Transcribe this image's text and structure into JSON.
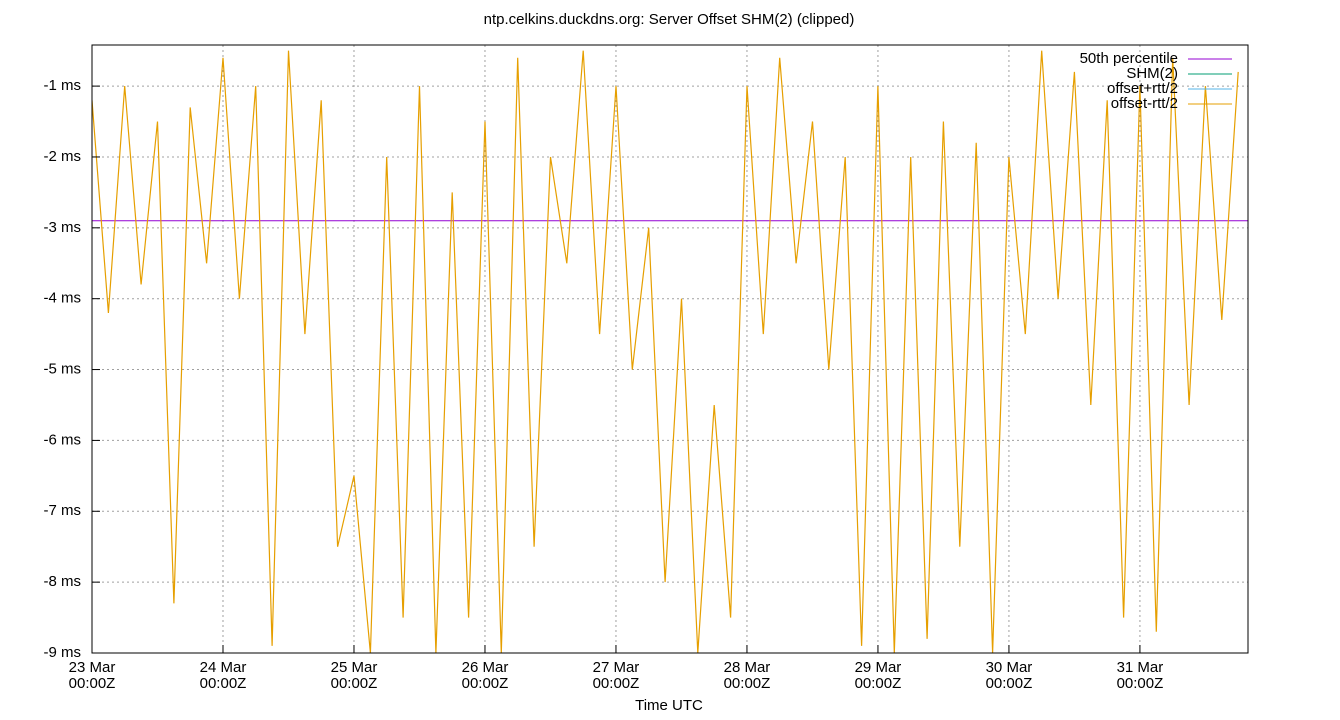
{
  "chart_data": {
    "type": "line",
    "title": "ntp.celkins.duckdns.org: Server Offset SHM(2) (clipped)",
    "x_label": "Time UTC",
    "x": [
      "23 Mar 00:00Z",
      "23 Mar 03:00Z",
      "23 Mar 06:00Z",
      "23 Mar 09:00Z",
      "23 Mar 12:00Z",
      "23 Mar 15:00Z",
      "23 Mar 18:00Z",
      "23 Mar 21:00Z",
      "24 Mar 00:00Z",
      "24 Mar 03:00Z",
      "24 Mar 06:00Z",
      "24 Mar 09:00Z",
      "24 Mar 12:00Z",
      "24 Mar 15:00Z",
      "24 Mar 18:00Z",
      "24 Mar 21:00Z",
      "25 Mar 00:00Z",
      "25 Mar 03:00Z",
      "25 Mar 06:00Z",
      "25 Mar 09:00Z",
      "25 Mar 12:00Z",
      "25 Mar 15:00Z",
      "25 Mar 18:00Z",
      "25 Mar 21:00Z",
      "26 Mar 00:00Z",
      "26 Mar 03:00Z",
      "26 Mar 06:00Z",
      "26 Mar 09:00Z",
      "26 Mar 12:00Z",
      "26 Mar 15:00Z",
      "26 Mar 18:00Z",
      "26 Mar 21:00Z",
      "27 Mar 00:00Z",
      "27 Mar 03:00Z",
      "27 Mar 06:00Z",
      "27 Mar 09:00Z",
      "27 Mar 12:00Z",
      "27 Mar 15:00Z",
      "27 Mar 18:00Z",
      "27 Mar 21:00Z",
      "28 Mar 00:00Z",
      "28 Mar 03:00Z",
      "28 Mar 06:00Z",
      "28 Mar 09:00Z",
      "28 Mar 12:00Z",
      "28 Mar 15:00Z",
      "28 Mar 18:00Z",
      "28 Mar 21:00Z",
      "29 Mar 00:00Z",
      "29 Mar 03:00Z",
      "29 Mar 06:00Z",
      "29 Mar 09:00Z",
      "29 Mar 12:00Z",
      "29 Mar 15:00Z",
      "29 Mar 18:00Z",
      "29 Mar 21:00Z",
      "30 Mar 00:00Z",
      "30 Mar 03:00Z",
      "30 Mar 06:00Z",
      "30 Mar 09:00Z",
      "30 Mar 12:00Z",
      "30 Mar 15:00Z",
      "30 Mar 18:00Z",
      "30 Mar 21:00Z",
      "31 Mar 00:00Z",
      "31 Mar 03:00Z",
      "31 Mar 06:00Z",
      "31 Mar 09:00Z",
      "31 Mar 12:00Z",
      "31 Mar 15:00Z",
      "31 Mar 18:00Z"
    ],
    "series": [
      {
        "name": "50th percentile",
        "color": "#9400d3",
        "value": -2.9
      },
      {
        "name": "SHM(2)",
        "color": "#009e73"
      },
      {
        "name": "offset+rtt/2",
        "color": "#56b4e9"
      },
      {
        "name": "offset-rtt/2",
        "color": "#e69f00",
        "values": [
          -1.2,
          -4.2,
          -1.0,
          -3.8,
          -1.5,
          -8.3,
          -1.3,
          -3.5,
          -0.6,
          -4.0,
          -1.0,
          -8.9,
          -0.5,
          -4.5,
          -1.2,
          -7.5,
          -6.5,
          -9.0,
          -2.0,
          -8.5,
          -1.0,
          -9.0,
          -2.5,
          -8.5,
          -1.5,
          -9.0,
          -0.6,
          -7.5,
          -2.0,
          -3.5,
          -0.5,
          -4.5,
          -1.0,
          -5.0,
          -3.0,
          -8.0,
          -4.0,
          -9.0,
          -5.5,
          -8.5,
          -1.0,
          -4.5,
          -0.6,
          -3.5,
          -1.5,
          -5.0,
          -2.0,
          -8.9,
          -1.0,
          -9.0,
          -2.0,
          -8.8,
          -1.5,
          -7.5,
          -1.8,
          -9.0,
          -2.0,
          -4.5,
          -0.5,
          -4.0,
          -0.8,
          -5.5,
          -1.2,
          -8.5,
          -1.0,
          -8.7,
          -0.6,
          -5.5,
          -1.0,
          -4.3,
          -0.8
        ]
      }
    ],
    "xlim": [
      "23 Mar 00:00Z",
      "31 Mar 19:48Z"
    ],
    "xticks": [
      "23 Mar\n00:00Z",
      "24 Mar\n00:00Z",
      "25 Mar\n00:00Z",
      "26 Mar\n00:00Z",
      "27 Mar\n00:00Z",
      "28 Mar\n00:00Z",
      "29 Mar\n00:00Z",
      "30 Mar\n00:00Z",
      "31 Mar\n00:00Z"
    ],
    "ylim": [
      -9,
      -0.42
    ],
    "yticks": [
      {
        "value": -1,
        "label": "-1 ms"
      },
      {
        "value": -2,
        "label": "-2 ms"
      },
      {
        "value": -3,
        "label": "-3 ms"
      },
      {
        "value": -4,
        "label": "-4 ms"
      },
      {
        "value": -5,
        "label": "-5 ms"
      },
      {
        "value": -6,
        "label": "-6 ms"
      },
      {
        "value": -7,
        "label": "-7 ms"
      },
      {
        "value": -8,
        "label": "-8 ms"
      },
      {
        "value": -9,
        "label": "-9 ms"
      }
    ],
    "grid": true,
    "legend": "top-right"
  }
}
